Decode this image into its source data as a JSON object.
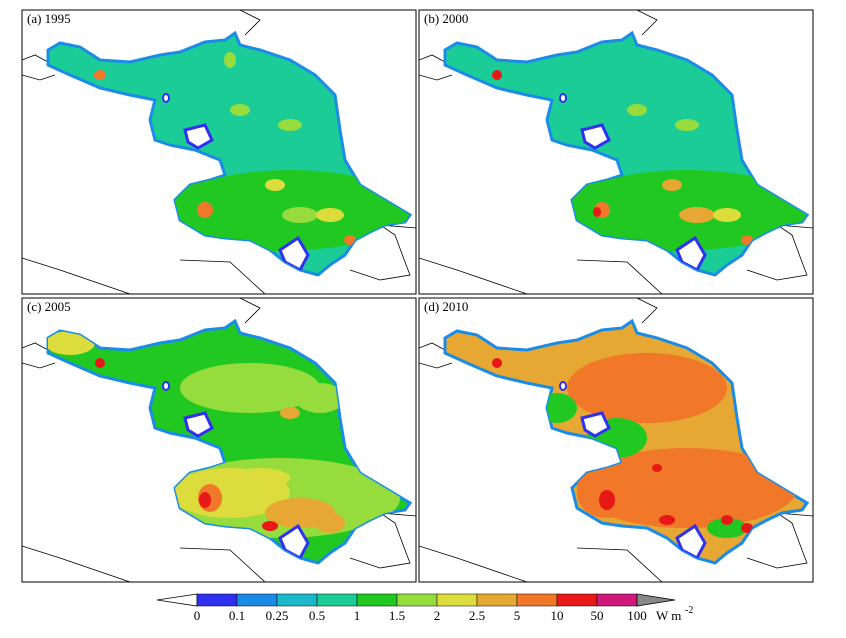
{
  "panels": [
    {
      "label": "(a) 1995"
    },
    {
      "label": "(b) 2000"
    },
    {
      "label": "(c) 2005"
    },
    {
      "label": "(d) 2010"
    }
  ],
  "colorbar": {
    "labels": [
      "0",
      "0.1",
      "0.25",
      "0.5",
      "1",
      "1.5",
      "2",
      "2.5",
      "5",
      "10",
      "50",
      "100"
    ],
    "colors": [
      "#3030f0",
      "#1a8ce8",
      "#1ab8c8",
      "#1ccc96",
      "#22c822",
      "#96dc3c",
      "#dcdc3c",
      "#e6a832",
      "#f07828",
      "#e81818",
      "#d0187a"
    ],
    "under_color": "#ffffff",
    "over_color": "#888888",
    "unit": "W m",
    "unit_exponent": "-2"
  }
}
